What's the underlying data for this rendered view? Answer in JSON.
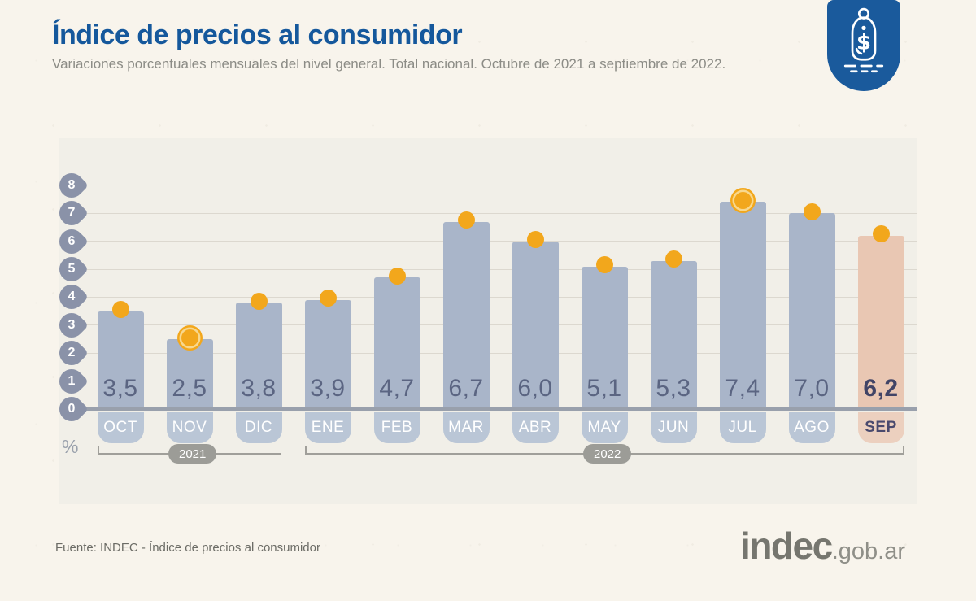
{
  "header": {
    "title": "Índice de precios al consumidor",
    "subtitle": "Variaciones porcentuales mensuales del nivel general. Total nacional. Octubre de 2021 a septiembre de 2022.",
    "title_color": "#15589c"
  },
  "badge": {
    "icon": "price-tag-icon",
    "symbol": "$",
    "bg_color": "#1a5a9c"
  },
  "chart_data": {
    "type": "bar",
    "title": "Índice de precios al consumidor",
    "subtitle": "Variaciones porcentuales mensuales del nivel general. Total nacional. Octubre de 2021 a septiembre de 2022.",
    "ylabel": "%",
    "ylim": [
      0,
      8
    ],
    "yticks": [
      0,
      1,
      2,
      3,
      4,
      5,
      6,
      7,
      8
    ],
    "grid": true,
    "legend": "none",
    "categories": [
      "OCT",
      "NOV",
      "DIC",
      "ENE",
      "FEB",
      "MAR",
      "ABR",
      "MAY",
      "JUN",
      "JUL",
      "AGO",
      "SEP"
    ],
    "values": [
      3.5,
      2.5,
      3.8,
      3.9,
      4.7,
      6.7,
      6.0,
      5.1,
      5.3,
      7.4,
      7.0,
      6.2
    ],
    "decimal_separator": ",",
    "highlighted_category": "SEP",
    "ringed_dot_categories": [
      "NOV",
      "JUL"
    ],
    "year_groups": [
      {
        "label": "2021",
        "from": "OCT",
        "to": "DIC"
      },
      {
        "label": "2022",
        "from": "ENE",
        "to": "SEP"
      }
    ],
    "colors": {
      "bar": "#a9b5c9",
      "bar_highlight": "#e9c7b3",
      "month_pill": "#bac6d6",
      "month_pill_highlight": "#ecd0bf",
      "dot": "#f2a71c",
      "axis_pin": "#8a92a8",
      "axis_line": "#99a0ac",
      "value_text": "#5b6582",
      "value_text_highlight": "#414466"
    }
  },
  "footer": {
    "source": "Fuente: INDEC - Índice de precios al consumidor",
    "logo_main": "indec",
    "logo_suffix": ".gob.ar"
  }
}
